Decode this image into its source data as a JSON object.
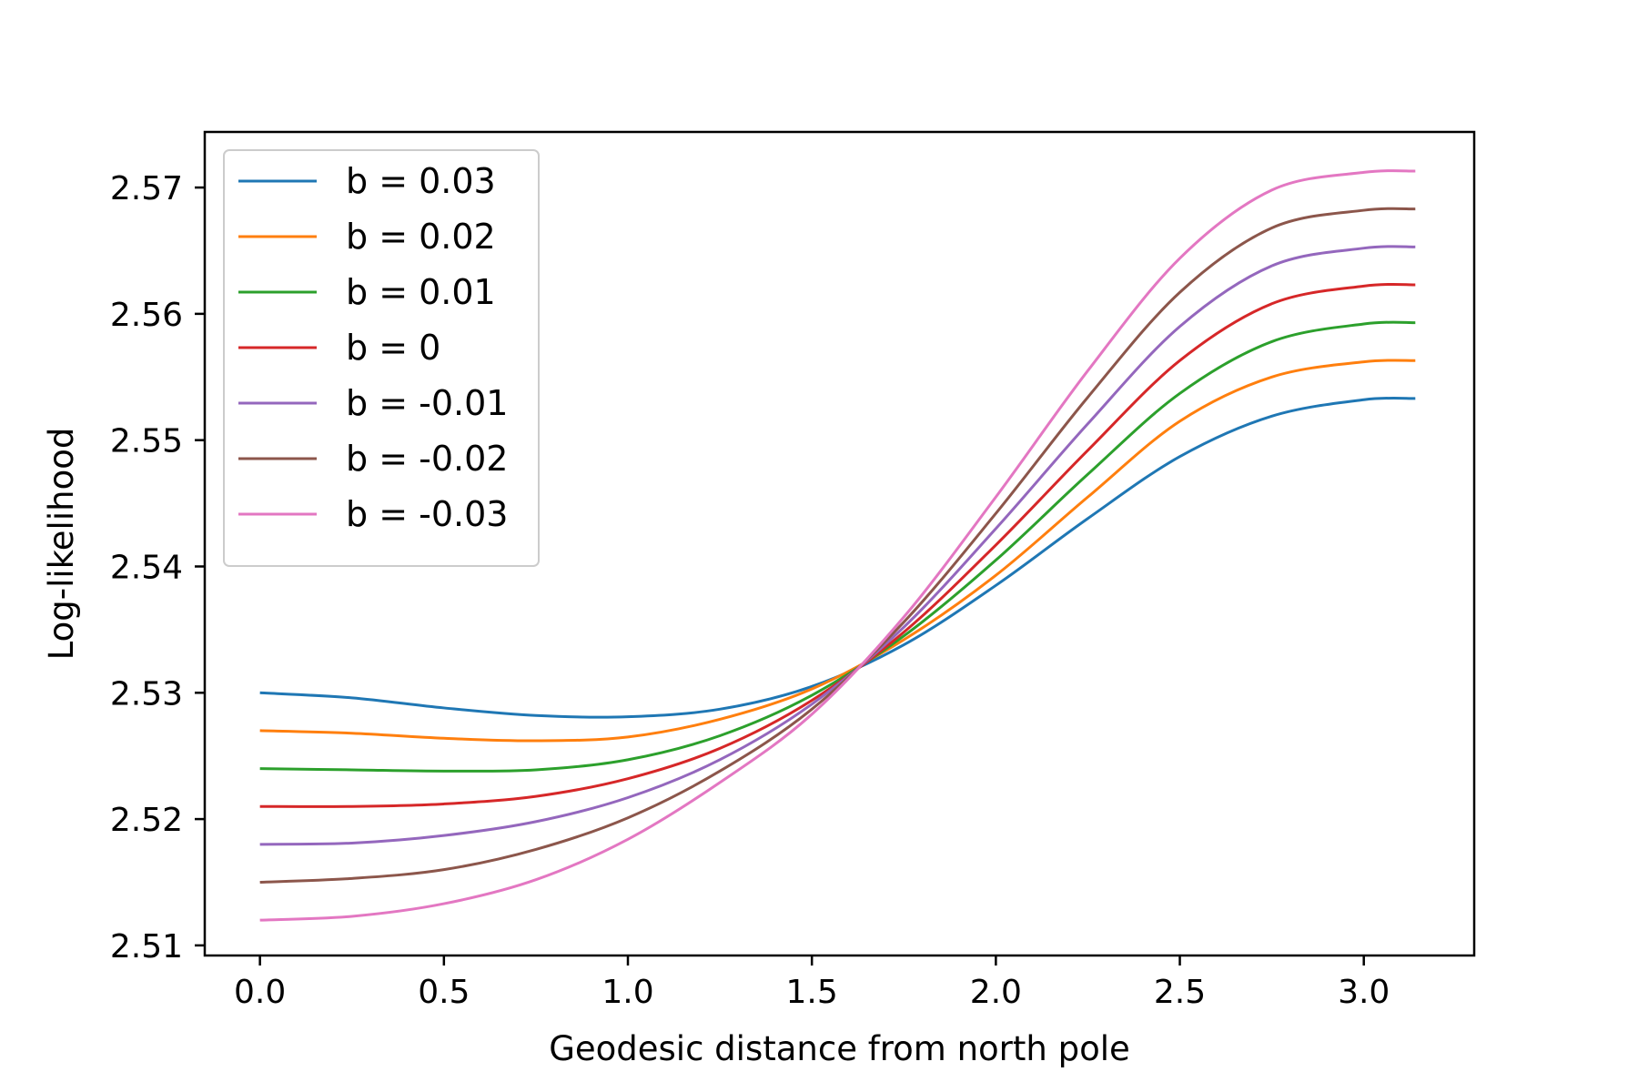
{
  "chart_data": {
    "type": "line",
    "title": "",
    "xlabel": "Geodesic distance from north pole",
    "ylabel": "Log-likelihood",
    "xlim": [
      -0.15,
      3.3
    ],
    "ylim": [
      2.5092,
      2.5744
    ],
    "xticks": [
      0.0,
      0.5,
      1.0,
      1.5,
      2.0,
      2.5,
      3.0
    ],
    "xtick_labels": [
      "0.0",
      "0.5",
      "1.0",
      "1.5",
      "2.0",
      "2.5",
      "3.0"
    ],
    "yticks": [
      2.51,
      2.52,
      2.53,
      2.54,
      2.55,
      2.56,
      2.57
    ],
    "ytick_labels": [
      "2.51",
      "2.52",
      "2.53",
      "2.54",
      "2.55",
      "2.56",
      "2.57"
    ],
    "grid": false,
    "legend_position": "top-left",
    "x": [
      0.0,
      0.25,
      0.5,
      0.75,
      1.0,
      1.25,
      1.5,
      1.75,
      2.0,
      2.25,
      2.5,
      2.75,
      3.0,
      3.14
    ],
    "series": [
      {
        "name": "b = 0.03",
        "color": "#1f77b4",
        "values": [
          2.53,
          2.5296,
          2.5288,
          2.5282,
          2.5281,
          2.5287,
          2.5305,
          2.5338,
          2.5385,
          2.5438,
          2.5487,
          2.5519,
          2.5532,
          2.5533
        ]
      },
      {
        "name": "b = 0.02",
        "color": "#ff7f0e",
        "values": [
          2.527,
          2.5268,
          2.5264,
          2.5262,
          2.5265,
          2.5279,
          2.5303,
          2.5342,
          2.5393,
          2.5455,
          2.5515,
          2.555,
          2.5562,
          2.5563
        ]
      },
      {
        "name": "b = 0.01",
        "color": "#2ca02c",
        "values": [
          2.524,
          2.5239,
          2.5238,
          2.5239,
          2.5247,
          2.5266,
          2.5298,
          2.5345,
          2.5405,
          2.5473,
          2.5537,
          2.5578,
          2.5592,
          2.5593
        ]
      },
      {
        "name": "b = 0",
        "color": "#d62728",
        "values": [
          2.521,
          2.521,
          2.5212,
          2.5218,
          2.5232,
          2.5256,
          2.5294,
          2.5348,
          2.5417,
          2.5492,
          2.5563,
          2.5608,
          2.5622,
          2.5623
        ]
      },
      {
        "name": "b = -0.01",
        "color": "#9467bd",
        "values": [
          2.518,
          2.5181,
          2.5187,
          2.5198,
          2.5217,
          2.5247,
          2.5291,
          2.5352,
          2.543,
          2.5513,
          2.559,
          2.5638,
          2.5652,
          2.5653
        ]
      },
      {
        "name": "b = -0.02",
        "color": "#8c564b",
        "values": [
          2.515,
          2.5153,
          2.516,
          2.5176,
          2.5201,
          2.5238,
          2.5287,
          2.5356,
          2.5442,
          2.5534,
          2.5617,
          2.5668,
          2.5682,
          2.5683
        ]
      },
      {
        "name": "b = -0.03",
        "color": "#e377c2",
        "values": [
          2.512,
          2.5123,
          2.5133,
          2.5152,
          2.5184,
          2.5229,
          2.5283,
          2.536,
          2.5455,
          2.5555,
          2.5644,
          2.5698,
          2.5712,
          2.5713
        ]
      }
    ]
  }
}
